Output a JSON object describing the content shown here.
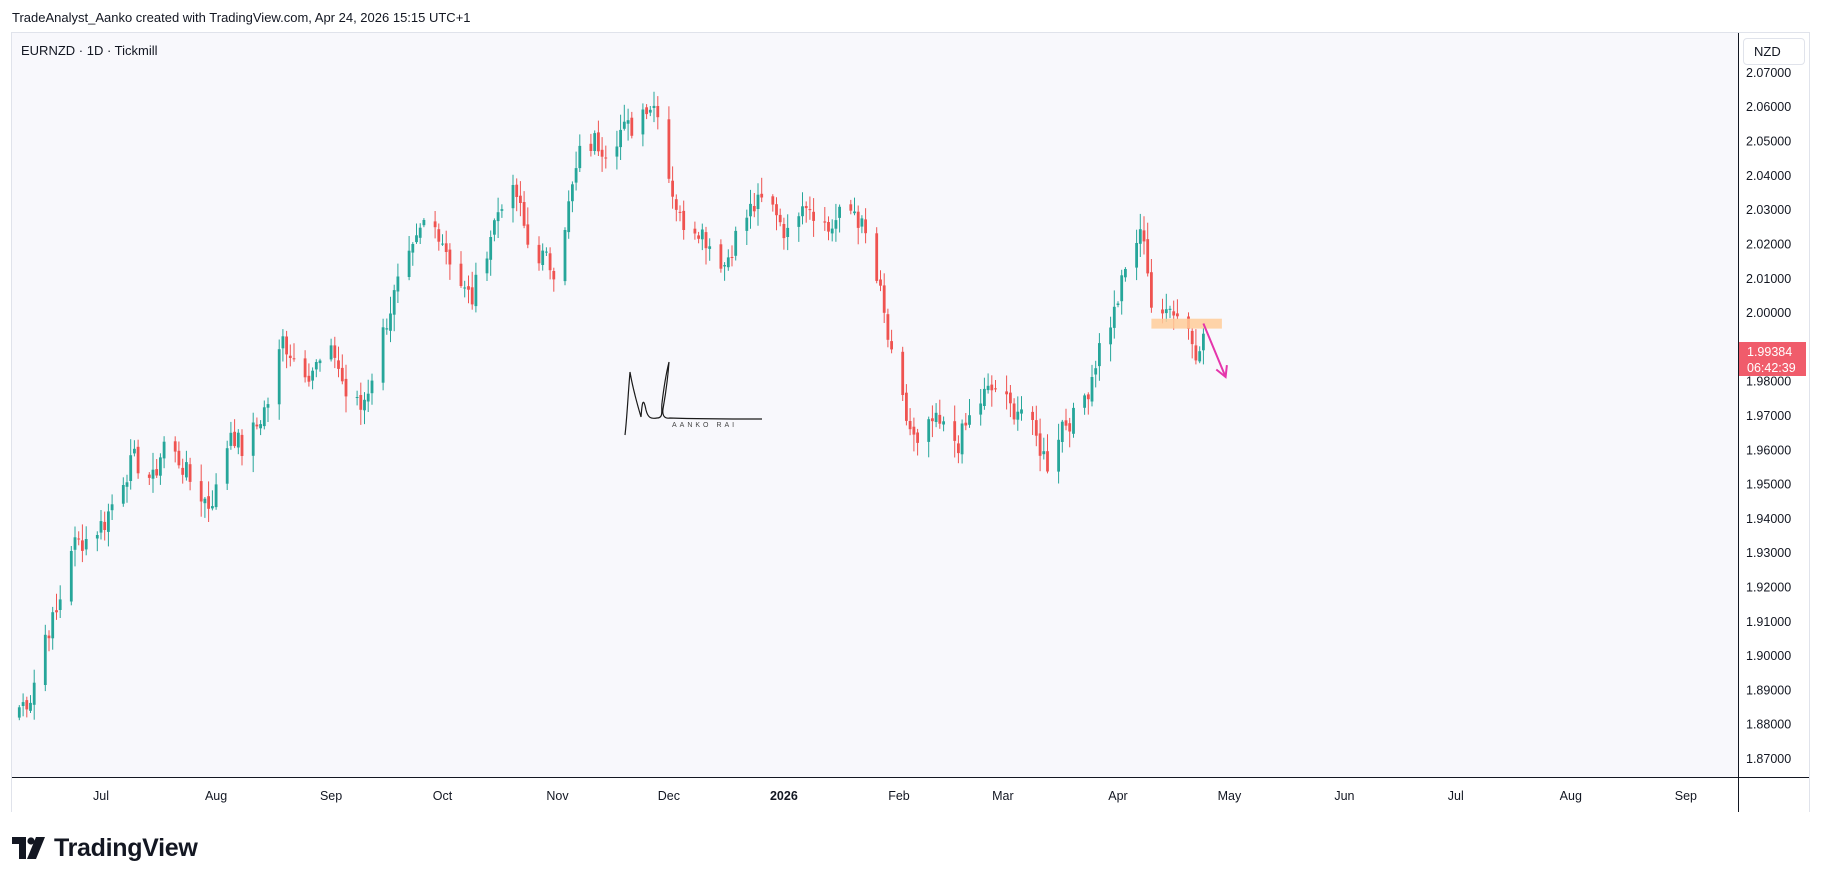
{
  "header": {
    "caption": "TradeAnalyst_Aanko created with TradingView.com, Apr 24, 2026 15:15 UTC+1"
  },
  "legend": {
    "symbol": "EURNZD · 1D · Tickmill"
  },
  "price_axis": {
    "currency": "NZD"
  },
  "current_price": {
    "value": "1.99384",
    "countdown": "06:42:39",
    "color": "#f05c6b"
  },
  "signature": {
    "name": "AANKO RAI"
  },
  "footer": {
    "logo_text": "TradingView"
  },
  "colors": {
    "up": "#26a69a",
    "down": "#ef5350",
    "zone": "#ffcc99",
    "arrow": "#e535ab"
  },
  "chart_data": {
    "type": "candlestick",
    "symbol": "EURNZD",
    "timeframe": "1D",
    "ylim": [
      1.8646,
      2.0815
    ],
    "y_ticks": [
      "2.07000",
      "2.06000",
      "2.05000",
      "2.04000",
      "2.03000",
      "2.02000",
      "2.01000",
      "2.00000",
      "1.98000",
      "1.97000",
      "1.96000",
      "1.95000",
      "1.94000",
      "1.93000",
      "1.92000",
      "1.91000",
      "1.90000",
      "1.89000",
      "1.88000",
      "1.87000"
    ],
    "x_ticks": [
      {
        "label": "Jul",
        "date": "2025-07-01"
      },
      {
        "label": "Aug",
        "date": "2025-08-01"
      },
      {
        "label": "Sep",
        "date": "2025-09-01"
      },
      {
        "label": "Oct",
        "date": "2025-10-01"
      },
      {
        "label": "Nov",
        "date": "2025-11-01"
      },
      {
        "label": "Dec",
        "date": "2025-12-01"
      },
      {
        "label": "2026",
        "date": "2026-01-01",
        "bold": true
      },
      {
        "label": "Feb",
        "date": "2026-02-01"
      },
      {
        "label": "Mar",
        "date": "2026-03-01"
      },
      {
        "label": "Apr",
        "date": "2026-04-01"
      },
      {
        "label": "May",
        "date": "2026-05-01"
      },
      {
        "label": "Jun",
        "date": "2026-06-01"
      },
      {
        "label": "Jul",
        "date": "2026-07-01"
      },
      {
        "label": "Aug",
        "date": "2026-08-01"
      },
      {
        "label": "Sep",
        "date": "2026-09-01"
      }
    ],
    "anchors": [
      [
        "2025-06-09",
        1.885
      ],
      [
        "2025-06-12",
        1.888
      ],
      [
        "2025-06-16",
        1.906
      ],
      [
        "2025-06-19",
        1.912
      ],
      [
        "2025-06-23",
        1.932
      ],
      [
        "2025-06-27",
        1.934
      ],
      [
        "2025-07-02",
        1.939
      ],
      [
        "2025-07-07",
        1.952
      ],
      [
        "2025-07-10",
        1.957
      ],
      [
        "2025-07-15",
        1.951
      ],
      [
        "2025-07-18",
        1.962
      ],
      [
        "2025-07-22",
        1.957
      ],
      [
        "2025-07-25",
        1.951
      ],
      [
        "2025-07-30",
        1.944
      ],
      [
        "2025-08-01",
        1.948
      ],
      [
        "2025-08-05",
        1.966
      ],
      [
        "2025-08-08",
        1.96
      ],
      [
        "2025-08-12",
        1.967
      ],
      [
        "2025-08-15",
        1.974
      ],
      [
        "2025-08-19",
        1.992
      ],
      [
        "2025-08-22",
        1.987
      ],
      [
        "2025-08-26",
        1.983
      ],
      [
        "2025-08-29",
        1.985
      ],
      [
        "2025-09-02",
        1.988
      ],
      [
        "2025-09-05",
        1.976
      ],
      [
        "2025-09-09",
        1.972
      ],
      [
        "2025-09-11",
        1.978
      ],
      [
        "2025-09-16",
        1.998
      ],
      [
        "2025-09-19",
        2.008
      ],
      [
        "2025-09-23",
        2.017
      ],
      [
        "2025-09-26",
        2.026
      ],
      [
        "2025-09-30",
        2.024
      ],
      [
        "2025-10-03",
        2.016
      ],
      [
        "2025-10-07",
        2.006
      ],
      [
        "2025-10-09",
        2.004
      ],
      [
        "2025-10-14",
        2.023
      ],
      [
        "2025-10-17",
        2.033
      ],
      [
        "2025-10-21",
        2.034
      ],
      [
        "2025-10-24",
        2.02
      ],
      [
        "2025-10-28",
        2.016
      ],
      [
        "2025-10-31",
        2.013
      ],
      [
        "2025-11-04",
        2.031
      ],
      [
        "2025-11-07",
        2.046
      ],
      [
        "2025-11-11",
        2.05
      ],
      [
        "2025-11-14",
        2.048
      ],
      [
        "2025-11-18",
        2.053
      ],
      [
        "2025-11-21",
        2.054
      ],
      [
        "2025-11-25",
        2.061
      ],
      [
        "2025-11-28",
        2.06
      ],
      [
        "2025-12-01",
        2.04
      ],
      [
        "2025-12-04",
        2.027
      ],
      [
        "2025-12-09",
        2.025
      ],
      [
        "2025-12-12",
        2.02
      ],
      [
        "2025-12-16",
        2.014
      ],
      [
        "2025-12-19",
        2.022
      ],
      [
        "2025-12-23",
        2.03
      ],
      [
        "2025-12-26",
        2.032
      ],
      [
        "2025-12-30",
        2.03
      ],
      [
        "2026-01-02",
        2.022
      ],
      [
        "2026-01-06",
        2.034
      ],
      [
        "2026-01-09",
        2.03
      ],
      [
        "2026-01-13",
        2.024
      ],
      [
        "2026-01-16",
        2.028
      ],
      [
        "2026-01-20",
        2.03
      ],
      [
        "2026-01-23",
        2.022
      ],
      [
        "2026-01-27",
        2.005
      ],
      [
        "2026-01-30",
        1.986
      ],
      [
        "2026-02-03",
        1.969
      ],
      [
        "2026-02-06",
        1.96
      ],
      [
        "2026-02-10",
        1.968
      ],
      [
        "2026-02-13",
        1.966
      ],
      [
        "2026-02-17",
        1.962
      ],
      [
        "2026-02-20",
        1.969
      ],
      [
        "2026-02-24",
        1.976
      ],
      [
        "2026-02-27",
        1.978
      ],
      [
        "2026-03-03",
        1.972
      ],
      [
        "2026-03-06",
        1.972
      ],
      [
        "2026-03-10",
        1.963
      ],
      [
        "2026-03-13",
        1.956
      ],
      [
        "2026-03-17",
        1.968
      ],
      [
        "2026-03-20",
        1.969
      ],
      [
        "2026-03-24",
        1.978
      ],
      [
        "2026-03-27",
        1.99
      ],
      [
        "2026-03-31",
        2.0
      ],
      [
        "2026-04-03",
        2.012
      ],
      [
        "2026-04-06",
        2.021
      ],
      [
        "2026-04-08",
        2.023
      ],
      [
        "2026-04-10",
        2.002
      ],
      [
        "2026-04-13",
        1.997
      ],
      [
        "2026-04-15",
        2.004
      ],
      [
        "2026-04-17",
        1.999
      ],
      [
        "2026-04-20",
        1.997
      ],
      [
        "2026-04-22",
        1.986
      ],
      [
        "2026-04-24",
        1.99384
      ]
    ],
    "zone": {
      "from_date": "2026-04-10",
      "to_date": "2026-04-29",
      "price_top": 1.9982,
      "price_bottom": 1.9953
    },
    "arrow": {
      "from_date": "2026-04-24",
      "from_price": 1.9968,
      "to_date": "2026-04-30",
      "to_price": 1.9812
    }
  }
}
